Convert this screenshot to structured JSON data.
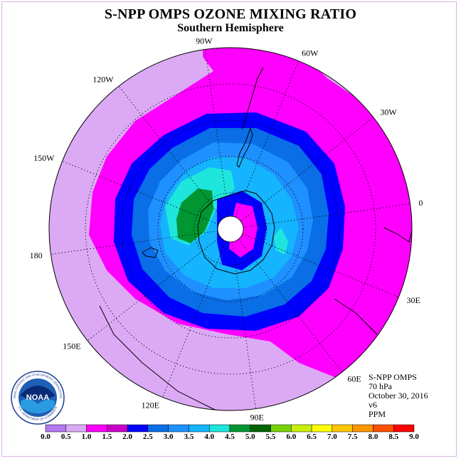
{
  "header": {
    "title": "S-NPP OMPS OZONE MIXING RATIO",
    "subtitle": "Southern Hemisphere"
  },
  "map": {
    "longitude_labels": [
      {
        "text": "90W",
        "angle": -98
      },
      {
        "text": "60W",
        "angle": -68
      },
      {
        "text": "30W",
        "angle": -38
      },
      {
        "text": "0",
        "angle": -8
      },
      {
        "text": "30E",
        "angle": 22
      },
      {
        "text": "60E",
        "angle": 52
      },
      {
        "text": "90E",
        "angle": 82
      },
      {
        "text": "120E",
        "angle": 112
      },
      {
        "text": "150E",
        "angle": 142
      },
      {
        "text": "180",
        "angle": 172
      },
      {
        "text": "150W",
        "angle": -158
      },
      {
        "text": "120W",
        "angle": -128
      }
    ]
  },
  "info": {
    "instrument": "S-NPP OMPS",
    "level": "70 hPa",
    "date": "October 30, 2016",
    "version": "v6",
    "units": "PPM"
  },
  "colorbar": {
    "tick_labels": [
      "0.0",
      "0.5",
      "1.0",
      "1.5",
      "2.0",
      "2.5",
      "3.0",
      "3.5",
      "4.0",
      "4.5",
      "5.0",
      "5.5",
      "6.0",
      "6.5",
      "7.0",
      "7.5",
      "8.0",
      "8.5",
      "9.0"
    ],
    "colors": [
      "#b478f0",
      "#dcaaf5",
      "#ff00ff",
      "#c800c8",
      "#0000ff",
      "#0a6ee6",
      "#1e90ff",
      "#14b4ff",
      "#1ee6dc",
      "#009632",
      "#006400",
      "#78d20a",
      "#c8f00a",
      "#ffff00",
      "#ffc800",
      "#ff9600",
      "#ff5000",
      "#ff0000",
      "#a05a32"
    ]
  },
  "logo": {
    "text": "NOAA",
    "ring_text": "NATIONAL OCEANIC AND ATMOSPHERIC ADMINISTRATION",
    "bottom_text": "U.S. DEPARTMENT OF COMMERCE"
  }
}
